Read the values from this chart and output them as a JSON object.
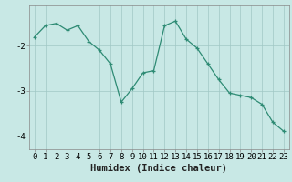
{
  "x": [
    0,
    1,
    2,
    3,
    4,
    5,
    6,
    7,
    8,
    9,
    10,
    11,
    12,
    13,
    14,
    15,
    16,
    17,
    18,
    19,
    20,
    21,
    22,
    23
  ],
  "y": [
    -1.8,
    -1.55,
    -1.5,
    -1.65,
    -1.55,
    -1.9,
    -2.1,
    -2.4,
    -3.25,
    -2.95,
    -2.6,
    -2.55,
    -1.55,
    -1.45,
    -1.85,
    -2.05,
    -2.4,
    -2.75,
    -3.05,
    -3.1,
    -3.15,
    -3.3,
    -3.7,
    -3.9
  ],
  "line_color": "#2e8b74",
  "marker": "+",
  "bg_color": "#c8e8e5",
  "grid_color": "#a0c8c4",
  "xlabel": "Humidex (Indice chaleur)",
  "xlim": [
    -0.5,
    23.5
  ],
  "ylim": [
    -4.3,
    -1.1
  ],
  "yticks": [
    -4,
    -3,
    -2
  ],
  "xticks": [
    0,
    1,
    2,
    3,
    4,
    5,
    6,
    7,
    8,
    9,
    10,
    11,
    12,
    13,
    14,
    15,
    16,
    17,
    18,
    19,
    20,
    21,
    22,
    23
  ],
  "xlabel_fontsize": 7.5,
  "tick_fontsize": 6.5
}
